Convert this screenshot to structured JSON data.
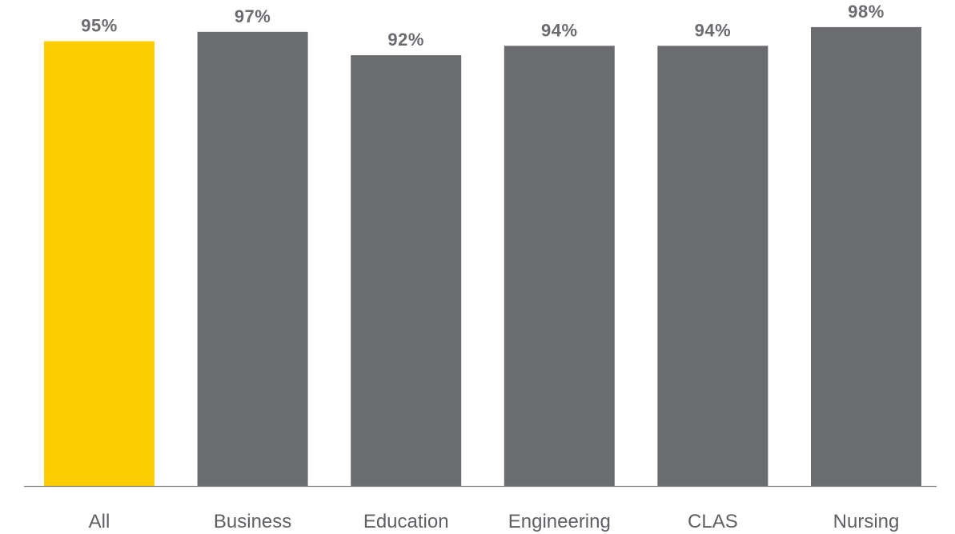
{
  "chart_data": {
    "type": "bar",
    "categories": [
      "All",
      "Business",
      "Education",
      "Engineering",
      "CLAS",
      "Nursing"
    ],
    "values": [
      95,
      97,
      92,
      94,
      94,
      98
    ],
    "value_labels": [
      "95%",
      "97%",
      "92%",
      "94%",
      "94%",
      "98%"
    ],
    "title": "",
    "xlabel": "",
    "ylabel": "",
    "ylim": [
      0,
      100
    ],
    "grid": false,
    "legend": "none",
    "colors": {
      "highlight": "#fccd00",
      "default": "#6b6c70",
      "axis": "#8a8a8a"
    },
    "highlight_index": 0
  }
}
